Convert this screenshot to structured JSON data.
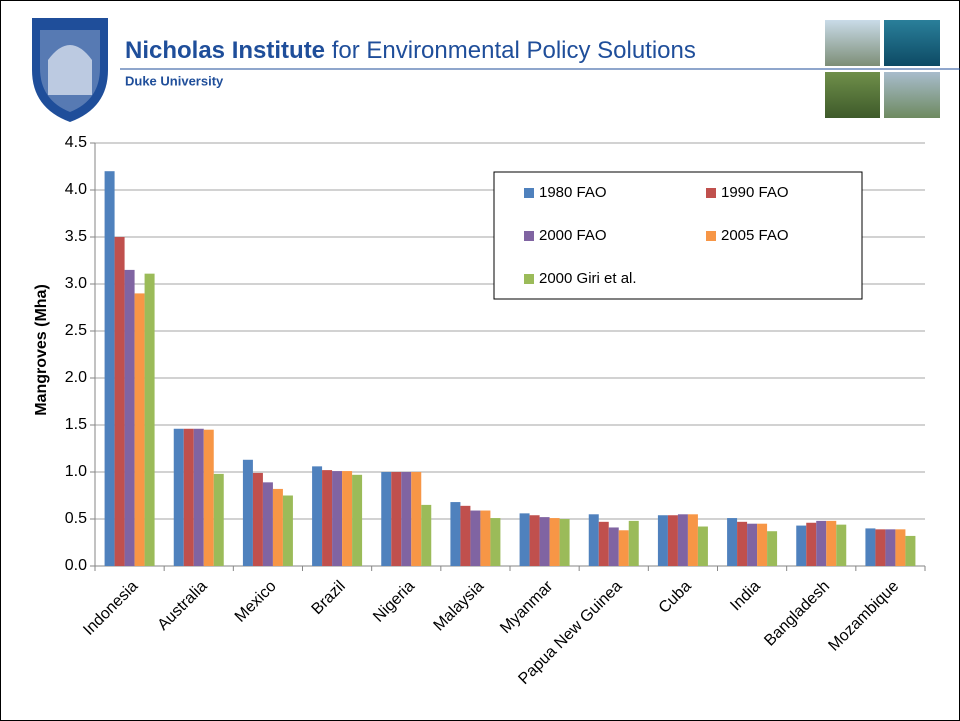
{
  "header": {
    "institute": "Nicholas Institute",
    "institute_rest": "for Environmental Policy Solutions",
    "university": "Duke University"
  },
  "chart_data": {
    "type": "bar",
    "y_label": "Mangroves (Mha)",
    "categories": [
      "Indonesia",
      "Australia",
      "Mexico",
      "Brazil",
      "Nigeria",
      "Malaysia",
      "Myanmar",
      "Papua New Guinea",
      "Cuba",
      "India",
      "Bangladesh",
      "Mozambique"
    ],
    "series": [
      {
        "name": "1980 FAO",
        "color": "#4f81bd",
        "values": [
          4.2,
          1.46,
          1.13,
          1.06,
          1.0,
          0.68,
          0.56,
          0.55,
          0.54,
          0.51,
          0.43,
          0.4
        ]
      },
      {
        "name": "1990 FAO",
        "color": "#c0504d",
        "values": [
          3.5,
          1.46,
          0.99,
          1.02,
          1.0,
          0.64,
          0.54,
          0.47,
          0.54,
          0.47,
          0.46,
          0.39
        ]
      },
      {
        "name": "2000 FAO",
        "color": "#8064a2",
        "values": [
          3.15,
          1.46,
          0.89,
          1.01,
          1.0,
          0.59,
          0.52,
          0.41,
          0.55,
          0.45,
          0.48,
          0.39
        ]
      },
      {
        "name": "2005 FAO",
        "color": "#f79646",
        "values": [
          2.9,
          1.45,
          0.82,
          1.01,
          1.0,
          0.59,
          0.51,
          0.38,
          0.55,
          0.45,
          0.48,
          0.39
        ]
      },
      {
        "name": "2000 Giri et al.",
        "color": "#9bbb59",
        "values": [
          3.11,
          0.98,
          0.75,
          0.97,
          0.65,
          0.51,
          0.5,
          0.48,
          0.42,
          0.37,
          0.44,
          0.32
        ]
      }
    ],
    "ylim": [
      0,
      4.5
    ],
    "yticks": [
      {
        "value": 0,
        "label": "0.0"
      },
      0.5,
      {
        "value": 1,
        "label": "1.0"
      },
      1.5,
      {
        "value": 2,
        "label": "2.0"
      },
      2.5,
      {
        "value": 3,
        "label": "3.0"
      },
      3.5,
      {
        "value": 4,
        "label": "4.0"
      },
      4.5
    ],
    "grid": true,
    "legend": "upper-right"
  }
}
